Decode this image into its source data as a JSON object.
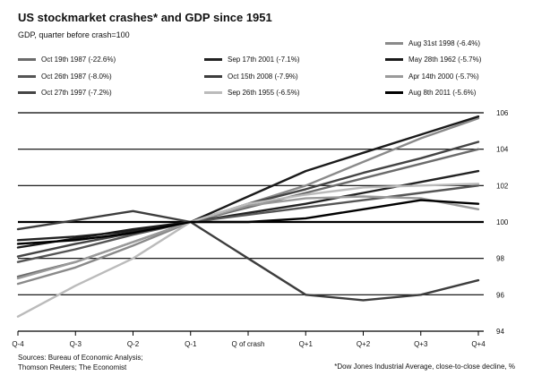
{
  "title": "US stockmarket crashes* and GDP since 1951",
  "subtitle": "GDP, quarter before crash=100",
  "source_lines": [
    "Sources: Bureau of Economic Analysis;",
    "Thomson Reuters; The Economist"
  ],
  "footnote": "*Dow Jones Industrial Average, close-to-close decline, %",
  "colors": {
    "axis": "#000000",
    "grid": "#000000",
    "text": "#111111"
  },
  "chart_data": {
    "type": "line",
    "title": "US stockmarket crashes* and GDP since 1951",
    "subtitle": "GDP, quarter before crash=100",
    "xlabel": "",
    "ylabel": "",
    "categories": [
      "Q-4",
      "Q-3",
      "Q-2",
      "Q-1",
      "Q of crash",
      "Q+1",
      "Q+2",
      "Q+3",
      "Q+4"
    ],
    "yticks": [
      94,
      96,
      98,
      100,
      102,
      104,
      106
    ],
    "ylim": [
      94,
      106
    ],
    "y_axis_side": "right",
    "grid": true,
    "legend_position": "top",
    "series": [
      {
        "name": "Aug 31st 1998 (-6.4%)",
        "color": "#8a8a8a",
        "values": [
          96.6,
          97.5,
          98.7,
          100,
          101.0,
          102.0,
          103.3,
          104.6,
          105.7
        ]
      },
      {
        "name": "Oct 19th 1987 (-22.6%)",
        "color": "#6b6b6b",
        "values": [
          97.0,
          97.8,
          98.9,
          100,
          100.8,
          101.6,
          102.4,
          103.2,
          104.0
        ]
      },
      {
        "name": "Sep 17th 2001 (-7.1%)",
        "color": "#222222",
        "values": [
          99.0,
          99.2,
          99.5,
          100,
          100.5,
          101.0,
          101.6,
          102.2,
          102.8
        ]
      },
      {
        "name": "May 28th 1962 (-5.7%)",
        "color": "#1a1a1a",
        "values": [
          98.6,
          99.1,
          99.6,
          100,
          101.4,
          102.8,
          103.8,
          104.8,
          105.8
        ]
      },
      {
        "name": "Oct 26th 1987 (-8.0%)",
        "color": "#555555",
        "values": [
          97.8,
          98.5,
          99.3,
          100,
          100.4,
          100.8,
          101.2,
          101.6,
          102.0
        ]
      },
      {
        "name": "Oct 15th 2008 (-7.9%)",
        "color": "#3d3d3d",
        "values": [
          99.6,
          100.1,
          100.6,
          100,
          98.0,
          96.0,
          95.7,
          96.0,
          96.8
        ]
      },
      {
        "name": "Apr 14th 2000 (-5.7%)",
        "color": "#9a9a9a",
        "values": [
          96.9,
          97.8,
          98.9,
          100,
          100.9,
          101.3,
          101.4,
          101.3,
          100.7
        ]
      },
      {
        "name": "Oct 27th 1997 (-7.2%)",
        "color": "#444444",
        "values": [
          98.1,
          98.8,
          99.4,
          100,
          101.0,
          101.8,
          102.7,
          103.5,
          104.4
        ]
      },
      {
        "name": "Sep 26th 1955 (-6.5%)",
        "color": "#bbbbbb",
        "values": [
          94.8,
          96.5,
          98.0,
          100,
          101.0,
          101.5,
          101.9,
          102.0,
          102.1
        ]
      },
      {
        "name": "Aug 8th 2011 (-5.6%)",
        "color": "#000000",
        "values": [
          98.8,
          99.0,
          99.4,
          100,
          100.0,
          100.2,
          100.7,
          101.2,
          101.0
        ]
      }
    ]
  }
}
